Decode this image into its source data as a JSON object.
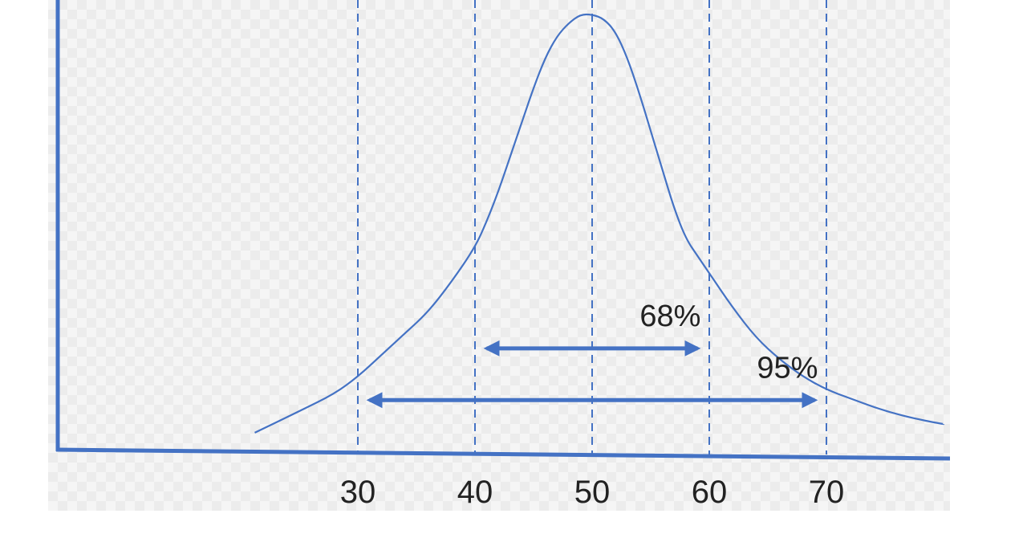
{
  "chart_data": {
    "type": "line",
    "title": "",
    "xlabel": "",
    "ylabel": "",
    "x_ticks": [
      30,
      40,
      50,
      60,
      70
    ],
    "xlim": [
      25,
      81
    ],
    "ylim": [
      0,
      1
    ],
    "grid": false,
    "vertical_reference_lines": [
      30,
      40,
      50,
      60,
      70
    ],
    "series": [
      {
        "color": "#4472c4",
        "x": [
          21.2,
          25,
          28,
          30,
          32,
          34,
          36,
          38,
          40,
          41,
          42,
          43,
          44,
          45,
          46,
          47,
          48,
          49,
          50,
          51,
          52,
          53,
          54,
          55,
          56,
          57,
          58,
          59,
          60,
          62,
          64,
          66,
          68,
          70,
          72,
          75,
          78,
          80
        ],
        "y": [
          0.03,
          0.08,
          0.12,
          0.16,
          0.21,
          0.26,
          0.31,
          0.38,
          0.46,
          0.52,
          0.59,
          0.67,
          0.75,
          0.83,
          0.9,
          0.95,
          0.98,
          1.0,
          1.0,
          0.99,
          0.96,
          0.9,
          0.82,
          0.73,
          0.64,
          0.55,
          0.48,
          0.44,
          0.4,
          0.32,
          0.25,
          0.2,
          0.16,
          0.13,
          0.11,
          0.08,
          0.06,
          0.05
        ]
      }
    ],
    "annotations": [
      {
        "label": "68%",
        "from": 41,
        "to": 59,
        "level": 0.22
      },
      {
        "label": "95%",
        "from": 31,
        "to": 69,
        "level": 0.1
      }
    ],
    "axis_color": "#4472c4",
    "guide_color": "#4472c4"
  }
}
